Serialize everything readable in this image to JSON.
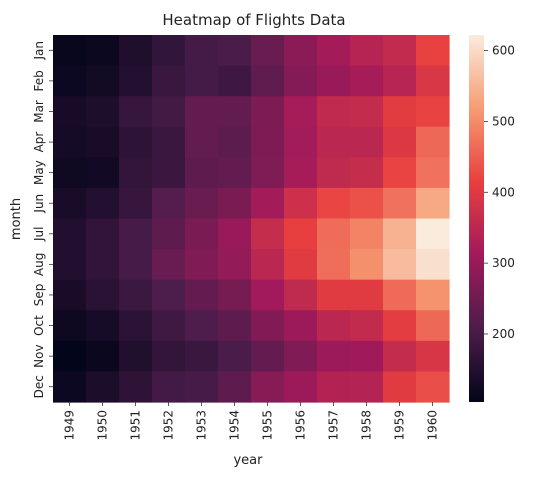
{
  "chart_data": {
    "type": "heatmap",
    "title": "Heatmap of Flights Data",
    "xlabel": "year",
    "ylabel": "month",
    "x": [
      "1949",
      "1950",
      "1951",
      "1952",
      "1953",
      "1954",
      "1955",
      "1956",
      "1957",
      "1958",
      "1959",
      "1960"
    ],
    "y": [
      "Jan",
      "Feb",
      "Mar",
      "Apr",
      "May",
      "Jun",
      "Jul",
      "Aug",
      "Sep",
      "Oct",
      "Nov",
      "Dec"
    ],
    "values": [
      [
        112,
        115,
        145,
        171,
        196,
        204,
        242,
        284,
        315,
        340,
        360,
        417
      ],
      [
        118,
        126,
        150,
        180,
        196,
        188,
        233,
        277,
        301,
        318,
        342,
        391
      ],
      [
        132,
        141,
        178,
        193,
        236,
        235,
        267,
        317,
        356,
        362,
        406,
        419
      ],
      [
        129,
        135,
        163,
        181,
        235,
        227,
        269,
        313,
        348,
        348,
        396,
        461
      ],
      [
        121,
        125,
        172,
        183,
        229,
        234,
        270,
        318,
        355,
        363,
        420,
        472
      ],
      [
        135,
        149,
        178,
        218,
        243,
        264,
        315,
        374,
        422,
        435,
        472,
        535
      ],
      [
        148,
        170,
        199,
        230,
        264,
        302,
        364,
        413,
        465,
        491,
        548,
        622
      ],
      [
        148,
        170,
        199,
        242,
        272,
        293,
        347,
        405,
        467,
        505,
        559,
        606
      ],
      [
        136,
        158,
        184,
        209,
        237,
        259,
        312,
        355,
        404,
        404,
        463,
        508
      ],
      [
        119,
        133,
        162,
        191,
        211,
        229,
        274,
        306,
        347,
        359,
        407,
        461
      ],
      [
        104,
        114,
        146,
        172,
        180,
        203,
        237,
        271,
        305,
        310,
        362,
        390
      ],
      [
        118,
        140,
        166,
        194,
        201,
        229,
        278,
        306,
        336,
        337,
        405,
        432
      ]
    ],
    "zlim": [
      104,
      622
    ],
    "colorbar_ticks": [
      200,
      300,
      400,
      500,
      600
    ],
    "colormap": [
      "#03051a",
      "#4c1d4b",
      "#a11a5b",
      "#e83f3f",
      "#f69c73",
      "#faebdd"
    ],
    "grid": false,
    "legend": "colorbar-right"
  }
}
